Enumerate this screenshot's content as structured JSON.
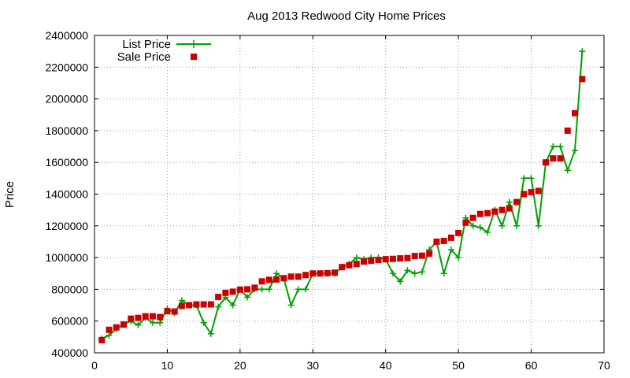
{
  "chart_data": {
    "type": "line",
    "title": "Aug 2013 Redwood City Home Prices",
    "xlabel": "",
    "ylabel": "Price",
    "xlim": [
      0,
      70
    ],
    "ylim": [
      400000,
      2400000
    ],
    "x_ticks": [
      0,
      10,
      20,
      30,
      40,
      50,
      60,
      70
    ],
    "y_ticks": [
      400000,
      600000,
      800000,
      1000000,
      1200000,
      1400000,
      1600000,
      1800000,
      2000000,
      2200000,
      2400000
    ],
    "grid": true,
    "legend_position": "top-left",
    "x": [
      1,
      2,
      3,
      4,
      5,
      6,
      7,
      8,
      9,
      10,
      11,
      12,
      13,
      14,
      15,
      16,
      17,
      18,
      19,
      20,
      21,
      22,
      23,
      24,
      25,
      26,
      27,
      28,
      29,
      30,
      31,
      32,
      33,
      34,
      35,
      36,
      37,
      38,
      39,
      40,
      41,
      42,
      43,
      44,
      45,
      46,
      47,
      48,
      49,
      50,
      51,
      52,
      53,
      54,
      55,
      56,
      57,
      58,
      59,
      60,
      61,
      62,
      63,
      64,
      65,
      66,
      67
    ],
    "series": [
      {
        "name": "List Price",
        "style": "line-plus",
        "color": "#00a000",
        "values": [
          489000,
          510000,
          550000,
          580000,
          600000,
          575000,
          620000,
          590000,
          590000,
          680000,
          650000,
          730000,
          700000,
          700000,
          590000,
          520000,
          690000,
          750000,
          700000,
          800000,
          750000,
          800000,
          800000,
          800000,
          900000,
          870000,
          700000,
          800000,
          800000,
          900000,
          900000,
          900000,
          900000,
          940000,
          960000,
          1000000,
          990000,
          1000000,
          1000000,
          990000,
          900000,
          850000,
          920000,
          900000,
          910000,
          1050000,
          1100000,
          900000,
          1050000,
          1000000,
          1250000,
          1200000,
          1190000,
          1160000,
          1300000,
          1200000,
          1350000,
          1200000,
          1500000,
          1500000,
          1200000,
          1600000,
          1700000,
          1700000,
          1550000,
          1675000,
          2300000
        ]
      },
      {
        "name": "Sale Price",
        "style": "square-points",
        "color": "#cc0000",
        "values": [
          480000,
          545000,
          560000,
          578000,
          615000,
          620000,
          630000,
          630000,
          625000,
          662000,
          660000,
          695000,
          700000,
          705000,
          705000,
          705000,
          752000,
          778000,
          785000,
          798000,
          800000,
          810000,
          850000,
          860000,
          862000,
          870000,
          880000,
          880000,
          890000,
          900000,
          900000,
          902000,
          905000,
          940000,
          952000,
          960000,
          975000,
          980000,
          985000,
          990000,
          992000,
          995000,
          997000,
          1010000,
          1012000,
          1025000,
          1100000,
          1105000,
          1125000,
          1155000,
          1220000,
          1250000,
          1275000,
          1280000,
          1290000,
          1300000,
          1310000,
          1350000,
          1400000,
          1412000,
          1420000,
          1600000,
          1625000,
          1625000,
          1800000,
          1910000,
          2125000
        ]
      }
    ]
  }
}
